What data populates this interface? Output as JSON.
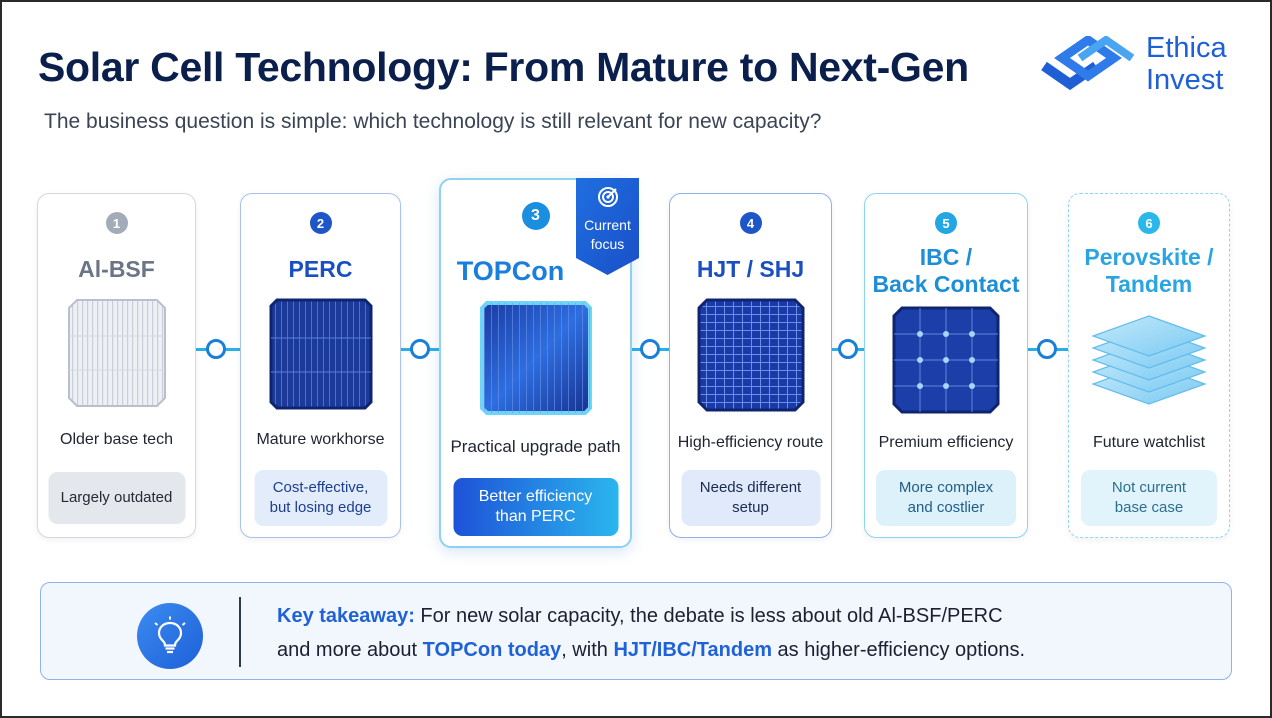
{
  "header": {
    "title": "Solar Cell Technology: From Mature to Next-Gen",
    "subtitle": "The business question is simple: which technology is still relevant for new capacity?",
    "logo_line1": "Ethica",
    "logo_line2": "Invest"
  },
  "cards": [
    {
      "num": "1",
      "name": "Al-BSF",
      "desc": "Older base tech",
      "tag": "Largely outdated"
    },
    {
      "num": "2",
      "name": "PERC",
      "desc": "Mature workhorse",
      "tag_line1": "Cost-effective,",
      "tag_line2": "but losing edge"
    },
    {
      "num": "3",
      "name": "TOPCon",
      "desc": "Practical upgrade path",
      "tag_line1": "Better efficiency",
      "tag_line2": "than PERC"
    },
    {
      "num": "4",
      "name": "HJT / SHJ",
      "desc": "High-efficiency route",
      "tag_line1": "Needs different",
      "tag_line2": "setup"
    },
    {
      "num": "5",
      "name_line1": "IBC /",
      "name_line2": "Back Contact",
      "desc": "Premium efficiency",
      "tag_line1": "More complex",
      "tag_line2": "and costlier"
    },
    {
      "num": "6",
      "name_line1": "Perovskite /",
      "name_line2": "Tandem",
      "desc": "Future watchlist",
      "tag_line1": "Not current",
      "tag_line2": "base case"
    }
  ],
  "badge": {
    "line1": "Current",
    "line2": "focus",
    "icon": "target-icon"
  },
  "takeaway": {
    "icon": "lightbulb-icon",
    "label": "Key takeaway:",
    "line1_rest": " For new solar capacity, the debate is less about old Al-BSF/PERC",
    "line2_start": "and more about ",
    "line2_hl1": "TOPCon today",
    "line2_mid": ", with ",
    "line2_hl2": "HJT/IBC/Tandem",
    "line2_end": " as higher-efficiency options."
  },
  "colors": {
    "title": "#0b1f4d",
    "accent_blue": "#1f62d8",
    "cyan": "#2ab0e8",
    "gray": "#8a93a3"
  }
}
